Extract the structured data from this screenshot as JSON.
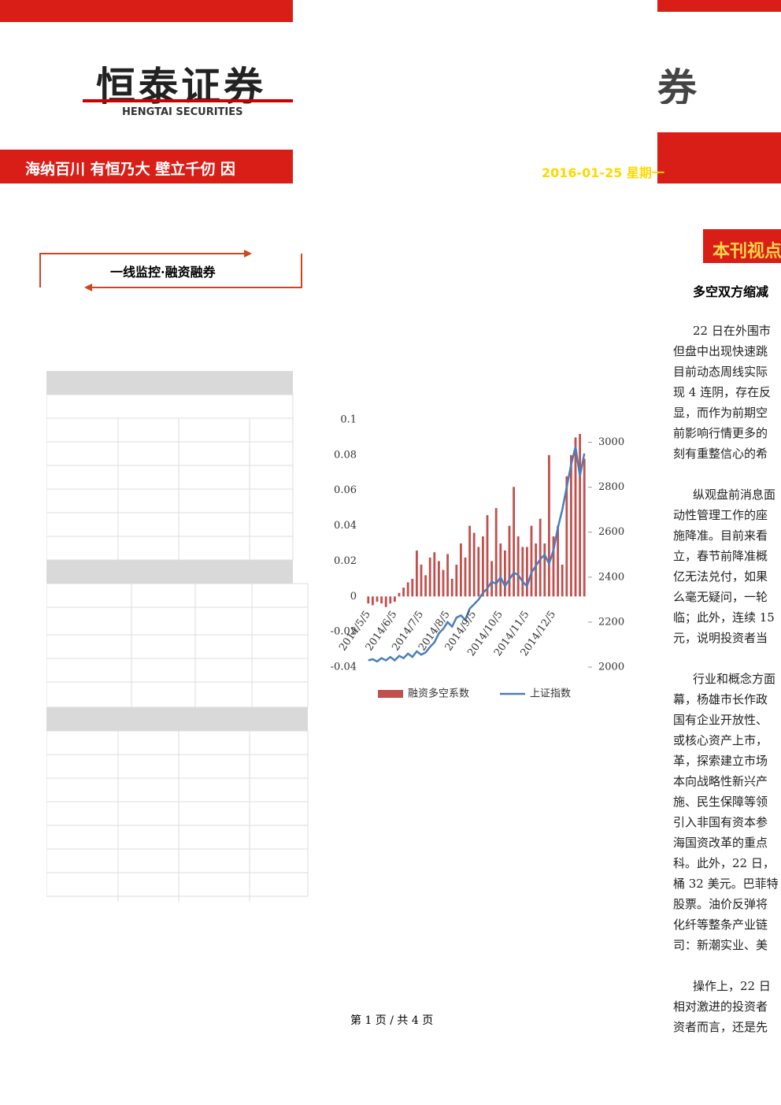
{
  "header": {
    "logo": "恒泰证券",
    "logo_en": "HENGTAI SECURITIES",
    "slogan": "海纳百川 有恒乃大  壁立千仞 因",
    "right_title": "融券",
    "date": "2016-01-25 星期一"
  },
  "sidebar": {
    "box_title": "一线监控·融资融券"
  },
  "article": {
    "section": "本刊视点",
    "heading": "多空双方缩减",
    "paragraphs": [
      [
        "22 日在外围市",
        "但盘中出现快速跳",
        "目前动态周线实际",
        "现 4 连阴，存在反",
        "显，而作为前期空",
        "前影响行情更多的",
        "刻有重整信心的希"
      ],
      [
        "纵观盘前消息面",
        "动性管理工作的座",
        "施降准。目前来看",
        "立，春节前降准概",
        "亿无法兑付，如果",
        "么毫无疑问，一轮",
        "临；此外，连续 15",
        "元，说明投资者当"
      ],
      [
        "行业和概念方面",
        "幕，杨雄市长作政",
        "国有企业开放性、",
        "或核心资产上市，",
        "革，探索建立市场",
        "本向战略性新兴产",
        "施、民生保障等领",
        "引入非国有资本参",
        "海国资改革的重点",
        "科。此外，22 日，",
        "桶 32 美元。巴菲特",
        "股票。油价反弹将",
        "化纤等整条产业链",
        "司：新潮实业、美"
      ],
      [
        "操作上，22 日",
        "相对激进的投资者",
        "资者而言，还是先"
      ]
    ]
  },
  "footer": {
    "page": "第 1 页 / 共 4 页"
  },
  "chart_data": {
    "type": "bar-line",
    "categories": [
      "2014/5/5",
      null,
      null,
      null,
      null,
      null,
      "2014/6/5",
      null,
      null,
      null,
      null,
      null,
      "2014/7/5",
      null,
      null,
      null,
      null,
      null,
      "2014/8/5",
      null,
      null,
      null,
      null,
      null,
      "2014/9/5",
      null,
      null,
      null,
      null,
      null,
      "2014/10/5",
      null,
      null,
      null,
      null,
      null,
      "2014/11/5",
      null,
      null,
      null,
      null,
      null,
      "2014/12/5",
      null,
      null,
      null,
      null,
      null,
      null,
      null
    ],
    "series": [
      {
        "name": "融资多空系数",
        "color": "#c0504d",
        "values": [
          -0.004,
          -0.005,
          -0.003,
          -0.004,
          -0.006,
          -0.004,
          -0.003,
          0.002,
          0.005,
          0.008,
          0.01,
          0.026,
          0.018,
          0.012,
          0.022,
          0.025,
          0.02,
          0.015,
          0.024,
          0.01,
          0.018,
          0.03,
          0.022,
          0.04,
          0.036,
          0.028,
          0.034,
          0.046,
          0.02,
          0.05,
          0.03,
          0.026,
          0.04,
          0.062,
          0.034,
          0.028,
          0.028,
          0.04,
          0.03,
          0.044,
          0.03,
          0.08,
          0.034,
          0.04,
          0.018,
          0.068,
          0.08,
          0.09,
          0.092,
          0.078
        ]
      },
      {
        "name": "上证指数",
        "color": "#4a7ebb",
        "axis": "y2",
        "values": [
          2030,
          2035,
          2025,
          2040,
          2030,
          2045,
          2030,
          2050,
          2040,
          2060,
          2045,
          2070,
          2055,
          2065,
          2090,
          2110,
          2150,
          2170,
          2200,
          2180,
          2220,
          2230,
          2210,
          2260,
          2280,
          2300,
          2330,
          2350,
          2380,
          2370,
          2400,
          2360,
          2390,
          2420,
          2410,
          2380,
          2360,
          2420,
          2450,
          2480,
          2500,
          2460,
          2520,
          2620,
          2700,
          2800,
          2900,
          2980,
          2850,
          2950
        ]
      }
    ],
    "ylim": [
      -0.04,
      0.1
    ],
    "yticks": [
      -0.04,
      -0.02,
      0,
      0.02,
      0.04,
      0.06,
      0.08,
      0.1
    ],
    "y2lim": [
      2000,
      3100
    ],
    "y2ticks": [
      2000,
      2200,
      2400,
      2600,
      2800,
      3000
    ]
  }
}
